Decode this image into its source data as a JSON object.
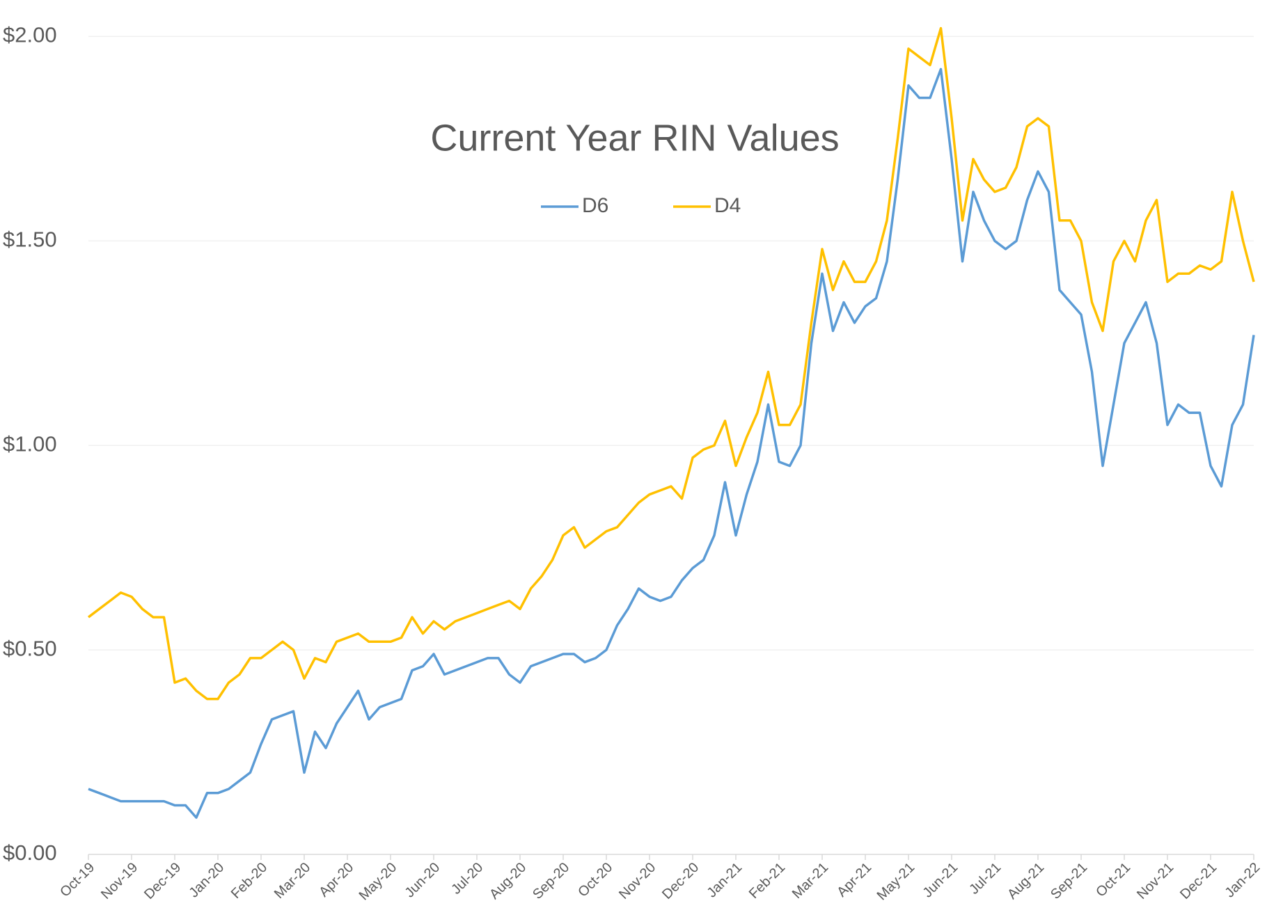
{
  "chart_data": {
    "type": "line",
    "title": "Current Year RIN Values",
    "x": [
      0,
      0.25,
      0.5,
      0.75,
      1,
      1.25,
      1.5,
      1.75,
      2,
      2.25,
      2.5,
      2.75,
      3,
      3.25,
      3.5,
      3.75,
      4,
      4.25,
      4.5,
      4.75,
      5,
      5.25,
      5.5,
      5.75,
      6,
      6.25,
      6.5,
      6.75,
      7,
      7.25,
      7.5,
      7.75,
      8,
      8.25,
      8.5,
      8.75,
      9,
      9.25,
      9.5,
      9.75,
      10,
      10.25,
      10.5,
      10.75,
      11,
      11.25,
      11.5,
      11.75,
      12,
      12.25,
      12.5,
      12.75,
      13,
      13.25,
      13.5,
      13.75,
      14,
      14.25,
      14.5,
      14.75,
      15,
      15.25,
      15.5,
      15.75,
      16,
      16.25,
      16.5,
      16.75,
      17,
      17.25,
      17.5,
      17.75,
      18,
      18.25,
      18.5,
      18.75,
      19,
      19.25,
      19.5,
      19.75,
      20,
      20.25,
      20.5,
      20.75,
      21,
      21.25,
      21.5,
      21.75,
      22,
      22.25,
      22.5,
      22.75,
      23,
      23.25,
      23.5,
      23.75,
      24,
      24.25,
      24.5,
      24.75,
      25,
      25.25,
      25.5,
      25.75,
      26,
      26.25,
      26.5,
      26.75,
      27
    ],
    "series": [
      {
        "name": "D6",
        "color": "#5b9bd5",
        "values": [
          0.16,
          0.15,
          0.14,
          0.13,
          0.13,
          0.13,
          0.13,
          0.13,
          0.12,
          0.12,
          0.09,
          0.15,
          0.15,
          0.16,
          0.18,
          0.2,
          0.27,
          0.33,
          0.34,
          0.35,
          0.2,
          0.3,
          0.26,
          0.32,
          0.36,
          0.4,
          0.33,
          0.36,
          0.37,
          0.38,
          0.45,
          0.46,
          0.49,
          0.44,
          0.45,
          0.46,
          0.47,
          0.48,
          0.48,
          0.44,
          0.42,
          0.46,
          0.47,
          0.48,
          0.49,
          0.49,
          0.47,
          0.48,
          0.5,
          0.56,
          0.6,
          0.65,
          0.63,
          0.62,
          0.63,
          0.67,
          0.7,
          0.72,
          0.78,
          0.91,
          0.78,
          0.88,
          0.96,
          1.1,
          0.96,
          0.95,
          1.0,
          1.25,
          1.42,
          1.28,
          1.35,
          1.3,
          1.34,
          1.36,
          1.45,
          1.65,
          1.88,
          1.85,
          1.85,
          1.92,
          1.7,
          1.45,
          1.62,
          1.55,
          1.5,
          1.48,
          1.5,
          1.6,
          1.67,
          1.62,
          1.38,
          1.35,
          1.32,
          1.18,
          0.95,
          1.1,
          1.25,
          1.3,
          1.35,
          1.25,
          1.05,
          1.1,
          1.08,
          1.08,
          0.95,
          0.9,
          1.05,
          1.1,
          1.27
        ]
      },
      {
        "name": "D4",
        "color": "#ffc000",
        "values": [
          0.58,
          0.6,
          0.62,
          0.64,
          0.63,
          0.6,
          0.58,
          0.58,
          0.42,
          0.43,
          0.4,
          0.38,
          0.38,
          0.42,
          0.44,
          0.48,
          0.48,
          0.5,
          0.52,
          0.5,
          0.43,
          0.48,
          0.47,
          0.52,
          0.53,
          0.54,
          0.52,
          0.52,
          0.52,
          0.53,
          0.58,
          0.54,
          0.57,
          0.55,
          0.57,
          0.58,
          0.59,
          0.6,
          0.61,
          0.62,
          0.6,
          0.65,
          0.68,
          0.72,
          0.78,
          0.8,
          0.75,
          0.77,
          0.79,
          0.8,
          0.83,
          0.86,
          0.88,
          0.89,
          0.9,
          0.87,
          0.97,
          0.99,
          1.0,
          1.06,
          0.95,
          1.02,
          1.08,
          1.18,
          1.05,
          1.05,
          1.1,
          1.3,
          1.48,
          1.38,
          1.45,
          1.4,
          1.4,
          1.45,
          1.55,
          1.75,
          1.97,
          1.95,
          1.93,
          2.02,
          1.8,
          1.55,
          1.7,
          1.65,
          1.62,
          1.63,
          1.68,
          1.78,
          1.8,
          1.78,
          1.55,
          1.55,
          1.5,
          1.35,
          1.28,
          1.45,
          1.5,
          1.45,
          1.55,
          1.6,
          1.4,
          1.42,
          1.42,
          1.44,
          1.43,
          1.45,
          1.62,
          1.5,
          1.4
        ]
      }
    ],
    "xlim": [
      0,
      27
    ],
    "xticks": [
      {
        "value": 0,
        "label": "Oct-19"
      },
      {
        "value": 1,
        "label": "Nov-19"
      },
      {
        "value": 2,
        "label": "Dec-19"
      },
      {
        "value": 3,
        "label": "Jan-20"
      },
      {
        "value": 4,
        "label": "Feb-20"
      },
      {
        "value": 5,
        "label": "Mar-20"
      },
      {
        "value": 6,
        "label": "Apr-20"
      },
      {
        "value": 7,
        "label": "May-20"
      },
      {
        "value": 8,
        "label": "Jun-20"
      },
      {
        "value": 9,
        "label": "Jul-20"
      },
      {
        "value": 10,
        "label": "Aug-20"
      },
      {
        "value": 11,
        "label": "Sep-20"
      },
      {
        "value": 12,
        "label": "Oct-20"
      },
      {
        "value": 13,
        "label": "Nov-20"
      },
      {
        "value": 14,
        "label": "Dec-20"
      },
      {
        "value": 15,
        "label": "Jan-21"
      },
      {
        "value": 16,
        "label": "Feb-21"
      },
      {
        "value": 17,
        "label": "Mar-21"
      },
      {
        "value": 18,
        "label": "Apr-21"
      },
      {
        "value": 19,
        "label": "May-21"
      },
      {
        "value": 20,
        "label": "Jun-21"
      },
      {
        "value": 21,
        "label": "Jul-21"
      },
      {
        "value": 22,
        "label": "Aug-21"
      },
      {
        "value": 23,
        "label": "Sep-21"
      },
      {
        "value": 24,
        "label": "Oct-21"
      },
      {
        "value": 25,
        "label": "Nov-21"
      },
      {
        "value": 26,
        "label": "Dec-21"
      },
      {
        "value": 27,
        "label": "Jan-22"
      }
    ],
    "ylim": [
      0,
      2.05
    ],
    "yticks": [
      {
        "value": 0,
        "label": "$0.00"
      },
      {
        "value": 0.5,
        "label": "$0.50"
      },
      {
        "value": 1,
        "label": "$1.00"
      },
      {
        "value": 1.5,
        "label": "$1.50"
      },
      {
        "value": 2,
        "label": "$2.00"
      }
    ],
    "grid": true
  }
}
